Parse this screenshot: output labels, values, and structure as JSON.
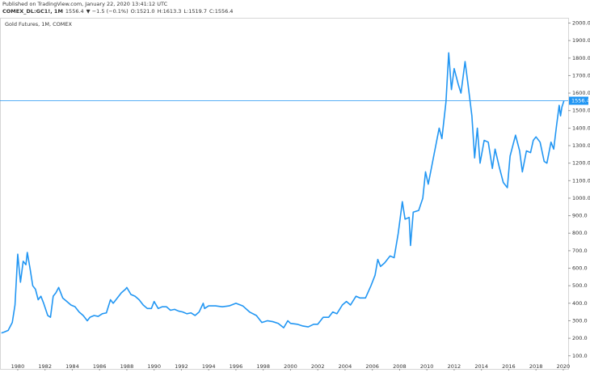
{
  "header": {
    "published": "Published on TradingView.com, January 22, 2020 13:41:12 UTC",
    "symbol": "COMEX_DL:GC1!, 1M",
    "price": "1556.4",
    "change": "▼ −1.5 (−0.1%)",
    "ohlc": [
      {
        "label": "O:",
        "value": "1521.0"
      },
      {
        "label": "H:",
        "value": "1613.3"
      },
      {
        "label": "L:",
        "value": "1519.7"
      },
      {
        "label": "C:",
        "value": "1556.4"
      }
    ]
  },
  "chart_data": {
    "type": "line",
    "title": "Gold Futures, 1M, COMEX",
    "x": [
      1978.8,
      1979.0,
      1979.3,
      1979.6,
      1979.8,
      1980.0,
      1980.1,
      1980.2,
      1980.4,
      1980.6,
      1980.7,
      1980.9,
      1981.1,
      1981.3,
      1981.5,
      1981.7,
      1981.9,
      1982.2,
      1982.4,
      1982.6,
      1982.8,
      1983.0,
      1983.3,
      1983.6,
      1983.9,
      1984.2,
      1984.5,
      1984.8,
      1985.1,
      1985.3,
      1985.6,
      1985.9,
      1986.2,
      1986.5,
      1986.8,
      1987.0,
      1987.3,
      1987.6,
      1987.9,
      1988.0,
      1988.3,
      1988.6,
      1988.9,
      1989.2,
      1989.5,
      1989.8,
      1990.0,
      1990.3,
      1990.6,
      1990.9,
      1991.2,
      1991.5,
      1991.8,
      1992.1,
      1992.4,
      1992.7,
      1993.0,
      1993.3,
      1993.6,
      1993.7,
      1994.0,
      1994.5,
      1995.0,
      1995.5,
      1996.0,
      1996.5,
      1997.0,
      1997.5,
      1997.9,
      1998.3,
      1998.7,
      1999.1,
      1999.5,
      1999.8,
      2000.0,
      2000.5,
      2000.9,
      2001.3,
      2001.7,
      2002.0,
      2002.4,
      2002.8,
      2003.1,
      2003.4,
      2003.8,
      2004.1,
      2004.4,
      2004.8,
      2005.1,
      2005.5,
      2005.9,
      2006.2,
      2006.4,
      2006.6,
      2006.9,
      2007.3,
      2007.6,
      2007.9,
      2008.2,
      2008.4,
      2008.7,
      2008.8,
      2009.0,
      2009.4,
      2009.7,
      2009.9,
      2010.1,
      2010.5,
      2010.9,
      2011.1,
      2011.4,
      2011.6,
      2011.8,
      2012.0,
      2012.3,
      2012.5,
      2012.8,
      2013.0,
      2013.3,
      2013.5,
      2013.7,
      2013.9,
      2014.2,
      2014.5,
      2014.8,
      2015.0,
      2015.3,
      2015.6,
      2015.9,
      2016.1,
      2016.5,
      2016.8,
      2017.0,
      2017.3,
      2017.6,
      2017.8,
      2018.0,
      2018.3,
      2018.6,
      2018.8,
      2019.1,
      2019.3,
      2019.5,
      2019.7,
      2019.8,
      2019.9,
      2020.05
    ],
    "series": [
      {
        "name": "COMEX_DL:GC1!",
        "color": "#2196f3",
        "values": [
          230,
          235,
          245,
          290,
          390,
          680,
          600,
          520,
          640,
          620,
          690,
          600,
          500,
          480,
          420,
          440,
          400,
          330,
          320,
          440,
          460,
          490,
          430,
          410,
          390,
          380,
          350,
          330,
          300,
          320,
          330,
          325,
          340,
          345,
          420,
          400,
          430,
          460,
          480,
          490,
          450,
          440,
          420,
          390,
          370,
          370,
          410,
          370,
          380,
          380,
          360,
          365,
          355,
          350,
          340,
          345,
          330,
          350,
          400,
          370,
          385,
          385,
          380,
          385,
          400,
          385,
          350,
          330,
          290,
          300,
          295,
          285,
          260,
          300,
          285,
          280,
          270,
          265,
          280,
          280,
          320,
          320,
          350,
          340,
          390,
          410,
          390,
          440,
          430,
          430,
          500,
          560,
          650,
          610,
          630,
          670,
          660,
          800,
          980,
          880,
          890,
          730,
          920,
          930,
          1000,
          1150,
          1080,
          1240,
          1400,
          1340,
          1550,
          1830,
          1620,
          1740,
          1650,
          1600,
          1780,
          1660,
          1470,
          1230,
          1400,
          1200,
          1330,
          1320,
          1170,
          1280,
          1180,
          1090,
          1060,
          1240,
          1360,
          1270,
          1150,
          1270,
          1260,
          1330,
          1350,
          1320,
          1210,
          1200,
          1320,
          1280,
          1410,
          1530,
          1470,
          1520,
          1556.4
        ]
      }
    ],
    "last_price": 1556.4,
    "xlim": [
      1978.7,
      2020.36
    ],
    "ylim": [
      25,
      2030
    ],
    "xticks": [
      1980,
      1982,
      1984,
      1986,
      1988,
      1990,
      1992,
      1994,
      1996,
      1998,
      2000,
      2002,
      2004,
      2006,
      2008,
      2010,
      2012,
      2014,
      2016,
      2018,
      2020
    ],
    "yticks": [
      {
        "value": 100,
        "label": "100.0"
      },
      {
        "value": 200,
        "label": "200.0"
      },
      {
        "value": 300,
        "label": "300.0"
      },
      {
        "value": 400,
        "label": "400.0"
      },
      {
        "value": 500,
        "label": "500.0"
      },
      {
        "value": 600,
        "label": "600.0"
      },
      {
        "value": 700,
        "label": "700.0"
      },
      {
        "value": 800,
        "label": "800.0"
      },
      {
        "value": 900,
        "label": "900.0"
      },
      {
        "value": 1000,
        "label": "1000.0"
      },
      {
        "value": 1100,
        "label": "1100.0"
      },
      {
        "value": 1200,
        "label": "1200.0"
      },
      {
        "value": 1300,
        "label": "1300.0"
      },
      {
        "value": 1400,
        "label": "1400.0"
      },
      {
        "value": 1500,
        "label": "1500.0"
      },
      {
        "value": 1600,
        "label": "1600.0"
      },
      {
        "value": 1700,
        "label": "1700.0"
      },
      {
        "value": 1800,
        "label": "1800.0"
      },
      {
        "value": 1900,
        "label": "1900.0"
      },
      {
        "value": 2000,
        "label": "2000.0"
      }
    ]
  }
}
